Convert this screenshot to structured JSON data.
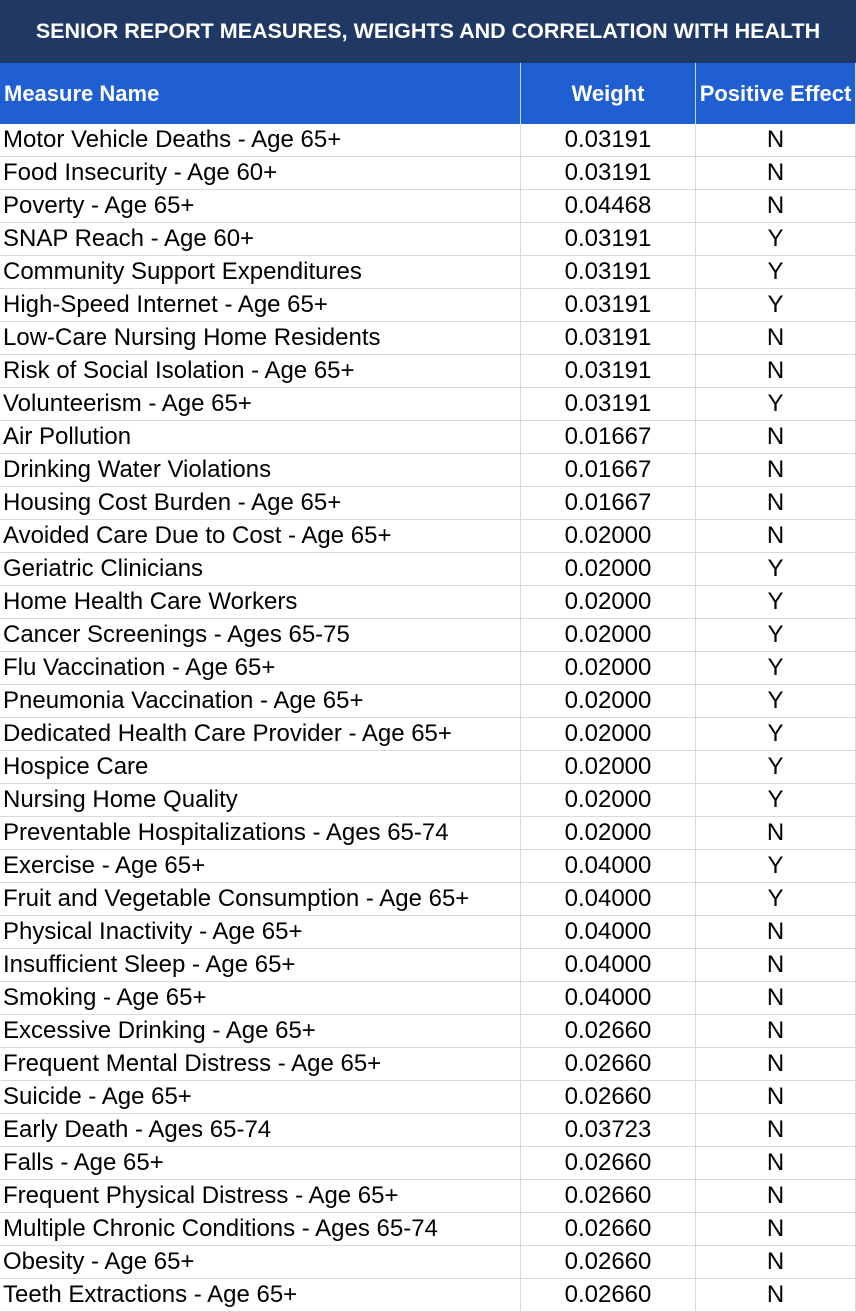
{
  "header": {
    "title": "SENIOR REPORT MEASURES, WEIGHTS AND CORRELATION WITH HEALTH"
  },
  "table": {
    "columns": [
      "Measure Name",
      "Weight",
      "Positive Effect"
    ],
    "rows": [
      [
        "Motor Vehicle Deaths - Age 65+",
        "0.03191",
        "N"
      ],
      [
        "Food Insecurity - Age 60+",
        "0.03191",
        "N"
      ],
      [
        "Poverty - Age 65+",
        "0.04468",
        "N"
      ],
      [
        "SNAP Reach - Age 60+",
        "0.03191",
        "Y"
      ],
      [
        "Community Support Expenditures",
        "0.03191",
        "Y"
      ],
      [
        "High-Speed Internet - Age 65+",
        "0.03191",
        "Y"
      ],
      [
        "Low-Care Nursing Home Residents",
        "0.03191",
        "N"
      ],
      [
        "Risk of Social Isolation - Age 65+",
        "0.03191",
        "N"
      ],
      [
        "Volunteerism - Age 65+",
        "0.03191",
        "Y"
      ],
      [
        "Air Pollution",
        "0.01667",
        "N"
      ],
      [
        "Drinking Water Violations",
        "0.01667",
        "N"
      ],
      [
        "Housing Cost Burden - Age 65+",
        "0.01667",
        "N"
      ],
      [
        "Avoided Care Due to Cost - Age 65+",
        "0.02000",
        "N"
      ],
      [
        "Geriatric Clinicians",
        "0.02000",
        "Y"
      ],
      [
        "Home Health Care Workers",
        "0.02000",
        "Y"
      ],
      [
        "Cancer Screenings - Ages 65-75",
        "0.02000",
        "Y"
      ],
      [
        "Flu Vaccination - Age 65+",
        "0.02000",
        "Y"
      ],
      [
        "Pneumonia Vaccination - Age 65+",
        "0.02000",
        "Y"
      ],
      [
        "Dedicated Health Care Provider - Age 65+",
        "0.02000",
        "Y"
      ],
      [
        "Hospice Care",
        "0.02000",
        "Y"
      ],
      [
        "Nursing Home Quality",
        "0.02000",
        "Y"
      ],
      [
        "Preventable Hospitalizations - Ages 65-74",
        "0.02000",
        "N"
      ],
      [
        "Exercise - Age 65+",
        "0.04000",
        "Y"
      ],
      [
        "Fruit and Vegetable Consumption - Age 65+",
        "0.04000",
        "Y"
      ],
      [
        "Physical Inactivity - Age 65+",
        "0.04000",
        "N"
      ],
      [
        "Insufficient Sleep - Age 65+",
        "0.04000",
        "N"
      ],
      [
        "Smoking - Age 65+",
        "0.04000",
        "N"
      ],
      [
        "Excessive Drinking - Age 65+",
        "0.02660",
        "N"
      ],
      [
        "Frequent Mental Distress - Age 65+",
        "0.02660",
        "N"
      ],
      [
        "Suicide - Age 65+",
        "0.02660",
        "N"
      ],
      [
        "Early Death - Ages 65-74",
        "0.03723",
        "N"
      ],
      [
        "Falls - Age 65+",
        "0.02660",
        "N"
      ],
      [
        "Frequent Physical Distress - Age 65+",
        "0.02660",
        "N"
      ],
      [
        "Multiple Chronic Conditions - Ages 65-74",
        "0.02660",
        "N"
      ],
      [
        "Obesity - Age 65+",
        "0.02660",
        "N"
      ],
      [
        "Teeth Extractions - Age 65+",
        "0.02660",
        "N"
      ]
    ]
  }
}
